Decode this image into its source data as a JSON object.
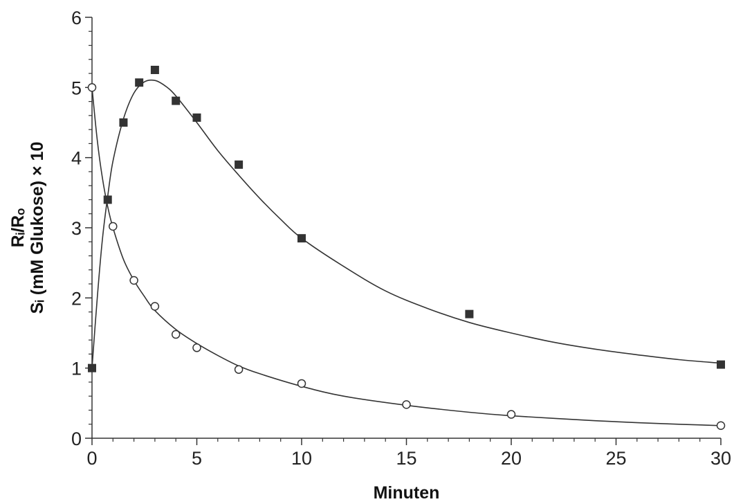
{
  "chart_data": {
    "type": "scatter",
    "xlabel": "Minuten",
    "ylabel_line1": "Rᵢ/Rₒ",
    "ylabel_line2": "Sᵢ (mM Glukose) × 10",
    "xlim": [
      0,
      30
    ],
    "ylim": [
      0,
      6
    ],
    "x_ticks": [
      0,
      5,
      10,
      15,
      20,
      25,
      30
    ],
    "y_ticks": [
      0,
      1,
      2,
      3,
      4,
      5,
      6
    ],
    "grid": false,
    "legend": "none",
    "series": [
      {
        "marker": "filled-square",
        "color": "#333333",
        "points": [
          [
            0,
            1.0
          ],
          [
            0.75,
            3.4
          ],
          [
            1.5,
            4.5
          ],
          [
            2.25,
            5.07
          ],
          [
            3,
            5.25
          ],
          [
            4,
            4.81
          ],
          [
            5,
            4.57
          ],
          [
            7,
            3.9
          ],
          [
            10,
            2.85
          ],
          [
            18,
            1.77
          ],
          [
            30,
            1.05
          ]
        ],
        "fit_curve": [
          [
            0,
            1.0
          ],
          [
            0.25,
            2.0
          ],
          [
            0.5,
            2.85
          ],
          [
            0.75,
            3.45
          ],
          [
            1,
            3.95
          ],
          [
            1.5,
            4.55
          ],
          [
            2,
            4.92
          ],
          [
            2.5,
            5.08
          ],
          [
            3,
            5.1
          ],
          [
            3.5,
            5.02
          ],
          [
            4,
            4.88
          ],
          [
            5,
            4.5
          ],
          [
            6,
            4.1
          ],
          [
            7,
            3.75
          ],
          [
            8,
            3.42
          ],
          [
            9,
            3.12
          ],
          [
            10,
            2.85
          ],
          [
            12,
            2.45
          ],
          [
            14,
            2.1
          ],
          [
            16,
            1.85
          ],
          [
            18,
            1.65
          ],
          [
            20,
            1.5
          ],
          [
            22,
            1.37
          ],
          [
            24,
            1.27
          ],
          [
            26,
            1.19
          ],
          [
            28,
            1.12
          ],
          [
            30,
            1.07
          ]
        ]
      },
      {
        "marker": "open-circle",
        "color": "#333333",
        "points": [
          [
            0,
            5.0
          ],
          [
            1,
            3.02
          ],
          [
            2,
            2.25
          ],
          [
            3,
            1.88
          ],
          [
            4,
            1.48
          ],
          [
            5,
            1.29
          ],
          [
            7,
            0.98
          ],
          [
            10,
            0.78
          ],
          [
            15,
            0.48
          ],
          [
            20,
            0.34
          ],
          [
            30,
            0.18
          ]
        ],
        "fit_curve": [
          [
            0,
            5.0
          ],
          [
            0.25,
            4.25
          ],
          [
            0.5,
            3.7
          ],
          [
            0.75,
            3.3
          ],
          [
            1,
            3.0
          ],
          [
            1.5,
            2.55
          ],
          [
            2,
            2.25
          ],
          [
            2.5,
            2.02
          ],
          [
            3,
            1.82
          ],
          [
            4,
            1.55
          ],
          [
            5,
            1.35
          ],
          [
            6,
            1.18
          ],
          [
            7,
            1.03
          ],
          [
            8,
            0.92
          ],
          [
            10,
            0.74
          ],
          [
            12,
            0.6
          ],
          [
            15,
            0.47
          ],
          [
            18,
            0.37
          ],
          [
            20,
            0.32
          ],
          [
            24,
            0.25
          ],
          [
            27,
            0.21
          ],
          [
            30,
            0.18
          ]
        ]
      }
    ]
  }
}
